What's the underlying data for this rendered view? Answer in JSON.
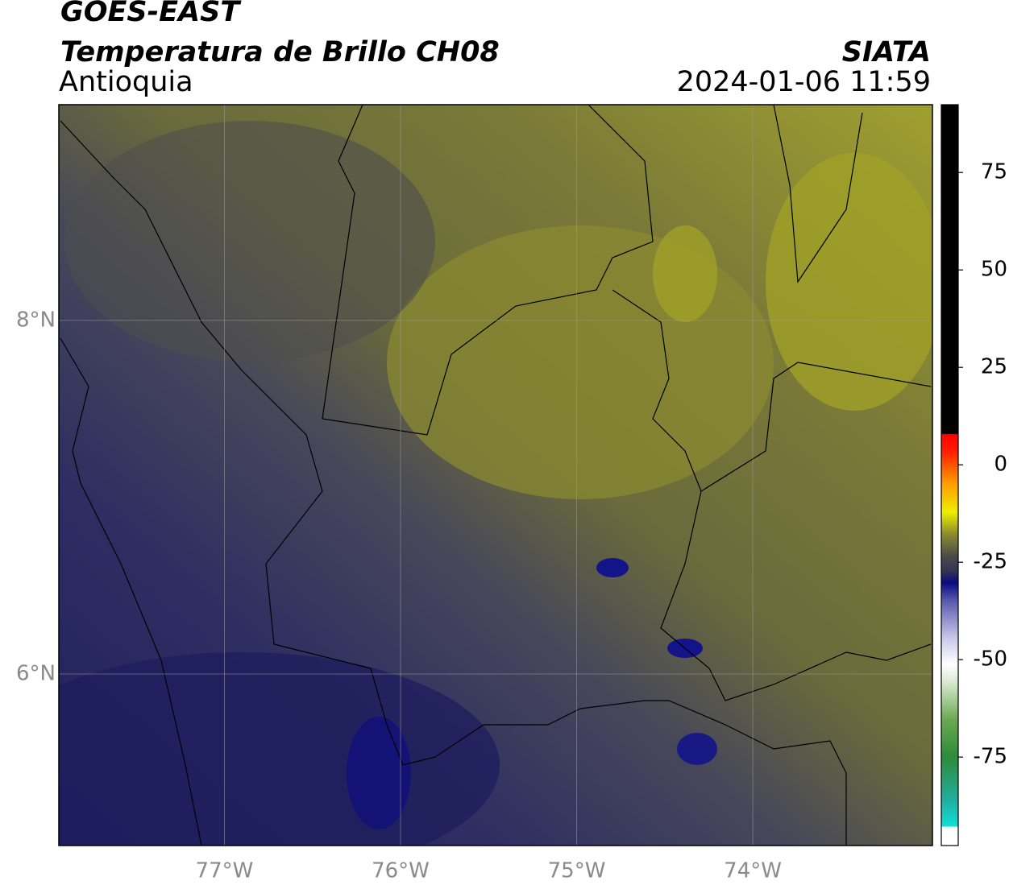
{
  "header": {
    "title": "GOES-EAST",
    "product": "Temperatura de Brillo CH08",
    "region": "Antioquia",
    "source": "SIATA",
    "datetime": "2024-01-06 11:59"
  },
  "map": {
    "xlim": [
      -77.94,
      -72.98
    ],
    "ylim": [
      5.03,
      9.22
    ],
    "xticks": [
      {
        "value": -77,
        "label": "77°W"
      },
      {
        "value": -76,
        "label": "76°W"
      },
      {
        "value": -75,
        "label": "75°W"
      },
      {
        "value": -74,
        "label": "74°W"
      }
    ],
    "yticks": [
      {
        "value": 6,
        "label": "6°N"
      },
      {
        "value": 8,
        "label": "8°N"
      }
    ],
    "grid": true
  },
  "colorbar": {
    "lim": [
      -97.7,
      92.4
    ],
    "ticks": [
      -75,
      -50,
      -25,
      0,
      25,
      50,
      75
    ]
  }
}
